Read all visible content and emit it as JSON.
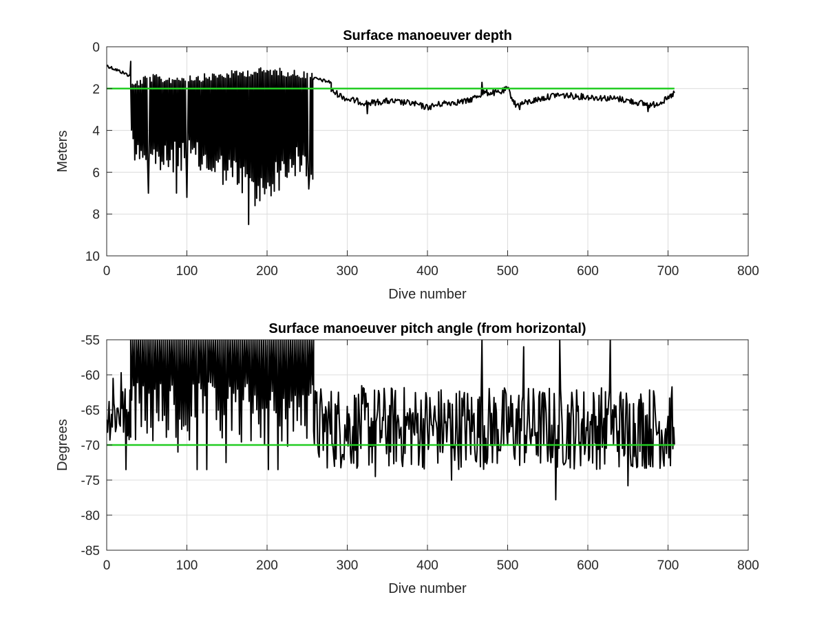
{
  "chart_data": [
    {
      "type": "line",
      "title": "Surface manoeuver depth",
      "xlabel": "Dive number",
      "ylabel": "Meters",
      "xlim": [
        0,
        800
      ],
      "ylim": [
        0,
        10
      ],
      "y_reversed": true,
      "grid": true,
      "xticks": [
        "0",
        "100",
        "200",
        "300",
        "400",
        "500",
        "600",
        "700",
        "800"
      ],
      "yticks": [
        "0",
        "2",
        "4",
        "6",
        "8",
        "10"
      ],
      "reference_line": {
        "y": 2,
        "x_range": [
          0,
          708
        ],
        "color": "#22cc22"
      },
      "series": [
        {
          "color": "#000000",
          "segments": [
            {
              "x_range": [
                0,
                30
              ],
              "y_start": 0.9,
              "y_end": 1.4,
              "noise": 0.08
            },
            {
              "x_range": [
                30,
                257
              ],
              "top": [
                1.9,
                1.5,
                1.6,
                1.5,
                1.5,
                1.4,
                1.3,
                1.2,
                1.2,
                1.3,
                1.4
              ],
              "bottom": [
                4.5,
                5.2,
                5.5,
                5.0,
                5.5,
                5.8,
                6.2,
                7.0,
                6.2,
                5.5,
                5.8
              ],
              "extremes": [
                [
                  30,
                  0.7
                ],
                [
                  52,
                  7.0
                ],
                [
                  87,
                  7.0
                ],
                [
                  100,
                  7.2
                ],
                [
                  177,
                  8.5
                ],
                [
                  185,
                  7.6
                ],
                [
                  252,
                  6.8
                ]
              ],
              "step": 2
            },
            {
              "x_range": [
                257,
                280
              ],
              "y_start": 1.5,
              "y_end": 1.7,
              "noise": 0.08
            },
            {
              "x_range": [
                280,
                708
              ],
              "points": [
                [
                  280,
                  2.1
                ],
                [
                  300,
                  2.5
                ],
                [
                  325,
                  2.7
                ],
                [
                  350,
                  2.6
                ],
                [
                  380,
                  2.7
                ],
                [
                  400,
                  2.9
                ],
                [
                  420,
                  2.7
                ],
                [
                  450,
                  2.6
                ],
                [
                  470,
                  2.2
                ],
                [
                  490,
                  2.2
                ],
                [
                  500,
                  2.0
                ],
                [
                  510,
                  2.8
                ],
                [
                  530,
                  2.6
                ],
                [
                  560,
                  2.3
                ],
                [
                  600,
                  2.4
                ],
                [
                  640,
                  2.5
                ],
                [
                  680,
                  2.8
                ],
                [
                  700,
                  2.5
                ],
                [
                  708,
                  2.2
                ]
              ],
              "noise": 0.15,
              "spikes": [
                [
                  325,
                  3.2
                ],
                [
                  468,
                  1.7
                ],
                [
                  515,
                  3.0
                ],
                [
                  675,
                  3.1
                ]
              ]
            }
          ]
        }
      ]
    },
    {
      "type": "line",
      "title": "Surface manoeuver pitch angle (from horizontal)",
      "xlabel": "Dive number",
      "ylabel": "Degrees",
      "xlim": [
        0,
        800
      ],
      "ylim": [
        -85,
        -55
      ],
      "grid": true,
      "xticks": [
        "0",
        "100",
        "200",
        "300",
        "400",
        "500",
        "600",
        "700",
        "800"
      ],
      "yticks": [
        "-55",
        "-60",
        "-65",
        "-70",
        "-75",
        "-80",
        "-85"
      ],
      "reference_line": {
        "y": -70,
        "x_range": [
          0,
          708
        ],
        "color": "#22cc22"
      },
      "series": [
        {
          "color": "#000000",
          "segments": [
            {
              "x_range": [
                0,
                30
              ],
              "center": -65.5,
              "amp": 4,
              "extremes": [
                [
                  24,
                  -73.5
                ],
                [
                  18,
                  -59.7
                ],
                [
                  8,
                  -60.5
                ]
              ]
            },
            {
              "x_range": [
                30,
                258
              ],
              "top": -55,
              "bottom_range": [
                -61,
                -73.5
              ],
              "extremes": [
                [
                  112,
                  -73.5
                ],
                [
                  124,
                  -73.5
                ],
                [
                  213,
                  -73.5
                ],
                [
                  202,
                  -73.5
                ],
                [
                  90,
                  -71
                ],
                [
                  150,
                  -72.5
                ]
              ],
              "step": 2.4
            },
            {
              "x_range": [
                258,
                708
              ],
              "center": -67.5,
              "amp": 6,
              "extremes": [
                [
                  468,
                  -55
                ],
                [
                  520,
                  -56
                ],
                [
                  565,
                  -55
                ],
                [
                  628,
                  -55
                ],
                [
                  560,
                  -77.8
                ],
                [
                  650,
                  -75.8
                ],
                [
                  430,
                  -75
                ],
                [
                  695,
                  -73
                ],
                [
                  335,
                  -74.5
                ],
                [
                  707,
                  -67.5
                ]
              ]
            }
          ]
        }
      ]
    }
  ]
}
